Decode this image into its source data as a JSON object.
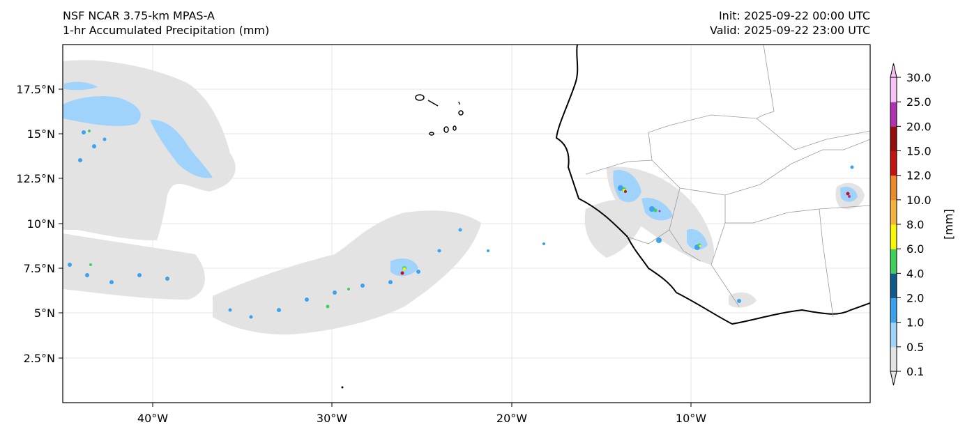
{
  "header": {
    "title_line1": "NSF NCAR 3.75-km MPAS-A",
    "title_line2": "1-hr Accumulated Precipitation (mm)",
    "init": "Init: 2025-09-22 00:00 UTC",
    "valid": "Valid: 2025-09-22 23:00 UTC"
  },
  "map": {
    "lon_labels": [
      "40°W",
      "30°W",
      "20°W",
      "10°W"
    ],
    "lat_labels": [
      "17.5°N",
      "15°N",
      "12.5°N",
      "10°N",
      "7.5°N",
      "5°N",
      "2.5°N"
    ],
    "lon_range": [
      -45,
      0
    ],
    "lat_range": [
      0,
      20
    ]
  },
  "colorbar": {
    "unit_label": "[mm]",
    "levels": [
      "0.1",
      "0.5",
      "1.0",
      "2.0",
      "4.0",
      "6.0",
      "8.0",
      "10.0",
      "12.0",
      "15.0",
      "20.0",
      "25.0",
      "30.0"
    ],
    "colors": [
      "#e3e3e3",
      "#9fd3fb",
      "#3ba2ef",
      "#0d5b8c",
      "#3fd05b",
      "#f7f707",
      "#f7b23b",
      "#ea8a28",
      "#c81212",
      "#960d0d",
      "#b032b3",
      "#f9c2f5"
    ]
  }
}
